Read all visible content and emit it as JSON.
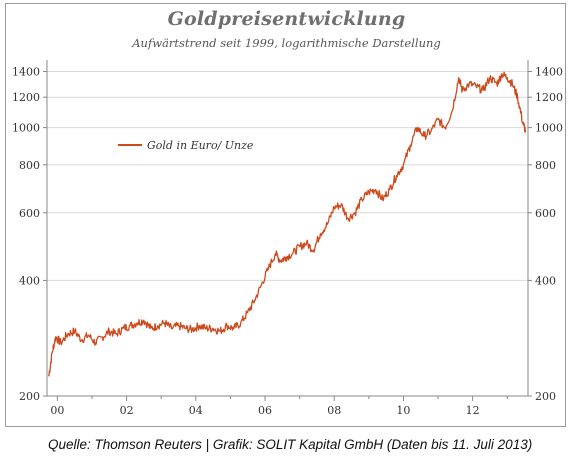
{
  "chart_data": {
    "type": "line",
    "title": "Goldpreisentwicklung",
    "subtitle": "Aufwärtstrend seit 1999, logarithmische Darstellung",
    "xlabel": "",
    "ylabel": "",
    "y_scale": "log",
    "ylim": [
      200,
      1500
    ],
    "xlim": [
      1999.7,
      2013.6
    ],
    "y_ticks": [
      200,
      400,
      600,
      800,
      1000,
      1200,
      1400
    ],
    "y_tick_labels": [
      "200",
      "400",
      "600",
      "800",
      "1000",
      "1200",
      "1400"
    ],
    "x_ticks": [
      2000,
      2002,
      2004,
      2006,
      2008,
      2010,
      2012
    ],
    "x_tick_labels": [
      "00",
      "02",
      "04",
      "06",
      "08",
      "10",
      "12"
    ],
    "dual_y_axis": true,
    "grid": "horizontal",
    "legend_position": "upper-left",
    "series": [
      {
        "name": "Gold in Euro/ Unze",
        "color": "#cc4a1c",
        "x": [
          1999.75,
          1999.85,
          1999.95,
          2000.1,
          2000.3,
          2000.5,
          2000.7,
          2000.9,
          2001.1,
          2001.3,
          2001.5,
          2001.7,
          2001.9,
          2002.1,
          2002.3,
          2002.5,
          2002.7,
          2002.9,
          2003.1,
          2003.3,
          2003.5,
          2003.7,
          2003.9,
          2004.1,
          2004.3,
          2004.5,
          2004.7,
          2004.9,
          2005.1,
          2005.3,
          2005.5,
          2005.7,
          2005.9,
          2006.1,
          2006.3,
          2006.45,
          2006.6,
          2006.8,
          2007.0,
          2007.2,
          2007.4,
          2007.6,
          2007.8,
          2008.0,
          2008.2,
          2008.4,
          2008.6,
          2008.8,
          2009.0,
          2009.2,
          2009.4,
          2009.6,
          2009.8,
          2010.0,
          2010.2,
          2010.4,
          2010.6,
          2010.8,
          2011.0,
          2011.2,
          2011.4,
          2011.6,
          2011.7,
          2011.9,
          2012.1,
          2012.3,
          2012.5,
          2012.7,
          2012.85,
          2013.0,
          2013.15,
          2013.3,
          2013.45,
          2013.53
        ],
        "values": [
          225,
          260,
          285,
          275,
          290,
          295,
          280,
          288,
          275,
          285,
          295,
          290,
          300,
          305,
          310,
          315,
          300,
          305,
          310,
          300,
          305,
          300,
          298,
          305,
          300,
          300,
          295,
          305,
          300,
          310,
          330,
          355,
          390,
          430,
          470,
          450,
          460,
          470,
          490,
          500,
          480,
          530,
          560,
          620,
          630,
          580,
          600,
          650,
          680,
          690,
          650,
          690,
          750,
          800,
          900,
          1000,
          950,
          980,
          1050,
          1000,
          1100,
          1350,
          1250,
          1300,
          1280,
          1250,
          1350,
          1300,
          1380,
          1350,
          1300,
          1200,
          1030,
          980
        ]
      }
    ]
  },
  "source_note": "Quelle: Thomson Reuters | Grafik: SOLIT Kapital GmbH (Daten bis 11. Juli 2013)"
}
